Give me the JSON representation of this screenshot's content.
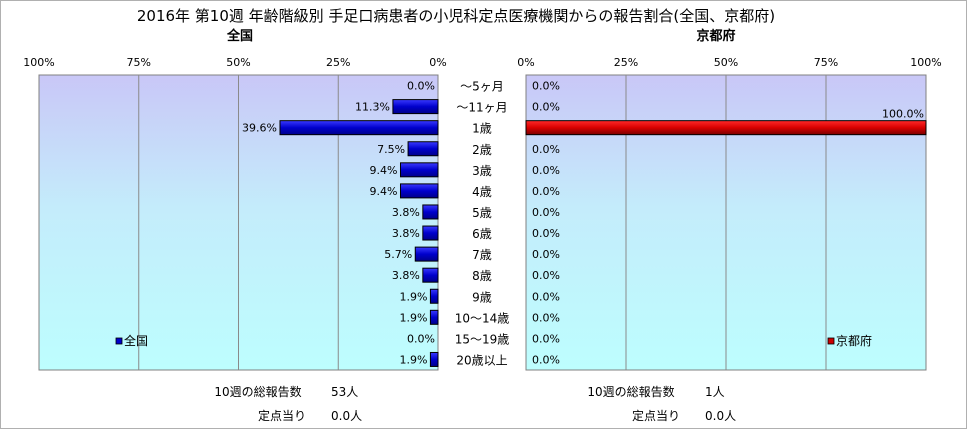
{
  "title": "2016年 第10週 年齢階級別 手足口病患者の小児科定点医療機関からの報告割合(全国、京都府)",
  "chart_data": [
    {
      "type": "bar",
      "orientation": "horizontal",
      "direction": "right-to-left",
      "title": "全国",
      "categories": [
        "～5ヶ月",
        "～11ヶ月",
        "1歳",
        "2歳",
        "3歳",
        "4歳",
        "5歳",
        "6歳",
        "7歳",
        "8歳",
        "9歳",
        "10～14歳",
        "15～19歳",
        "20歳以上"
      ],
      "series": [
        {
          "name": "全国",
          "color": "#0000cc",
          "values": [
            0.0,
            11.3,
            39.6,
            7.5,
            9.4,
            9.4,
            3.8,
            3.8,
            5.7,
            3.8,
            1.9,
            1.9,
            0.0,
            1.9
          ],
          "labels": [
            "0.0%",
            "11.3%",
            "39.6%",
            "7.5%",
            "9.4%",
            "9.4%",
            "3.8%",
            "3.8%",
            "5.7%",
            "3.8%",
            "1.9%",
            "1.9%",
            "0.0%",
            "1.9%"
          ]
        }
      ],
      "xlim": [
        0,
        100
      ],
      "ticks": [
        "100%",
        "75%",
        "50%",
        "25%",
        "0%"
      ],
      "grid": true,
      "legend": "bottom-left",
      "footer": {
        "label": "10週の総報告数",
        "value": "53人",
        "sub_label": "定点当り",
        "sub_value": "0.0人"
      }
    },
    {
      "type": "bar",
      "orientation": "horizontal",
      "direction": "left-to-right",
      "title": "京都府",
      "categories": [
        "～5ヶ月",
        "～11ヶ月",
        "1歳",
        "2歳",
        "3歳",
        "4歳",
        "5歳",
        "6歳",
        "7歳",
        "8歳",
        "9歳",
        "10～14歳",
        "15～19歳",
        "20歳以上"
      ],
      "series": [
        {
          "name": "京都府",
          "color": "#cc0000",
          "values": [
            0.0,
            0.0,
            100.0,
            0.0,
            0.0,
            0.0,
            0.0,
            0.0,
            0.0,
            0.0,
            0.0,
            0.0,
            0.0,
            0.0
          ],
          "labels": [
            "0.0%",
            "0.0%",
            "100.0%",
            "0.0%",
            "0.0%",
            "0.0%",
            "0.0%",
            "0.0%",
            "0.0%",
            "0.0%",
            "0.0%",
            "0.0%",
            "0.0%",
            "0.0%"
          ]
        }
      ],
      "xlim": [
        0,
        100
      ],
      "ticks": [
        "0%",
        "25%",
        "50%",
        "75%",
        "100%"
      ],
      "grid": true,
      "legend": "bottom-right",
      "footer": {
        "label": "10週の総報告数",
        "value": "1人",
        "sub_label": "定点当り",
        "sub_value": "0.0人"
      }
    }
  ]
}
